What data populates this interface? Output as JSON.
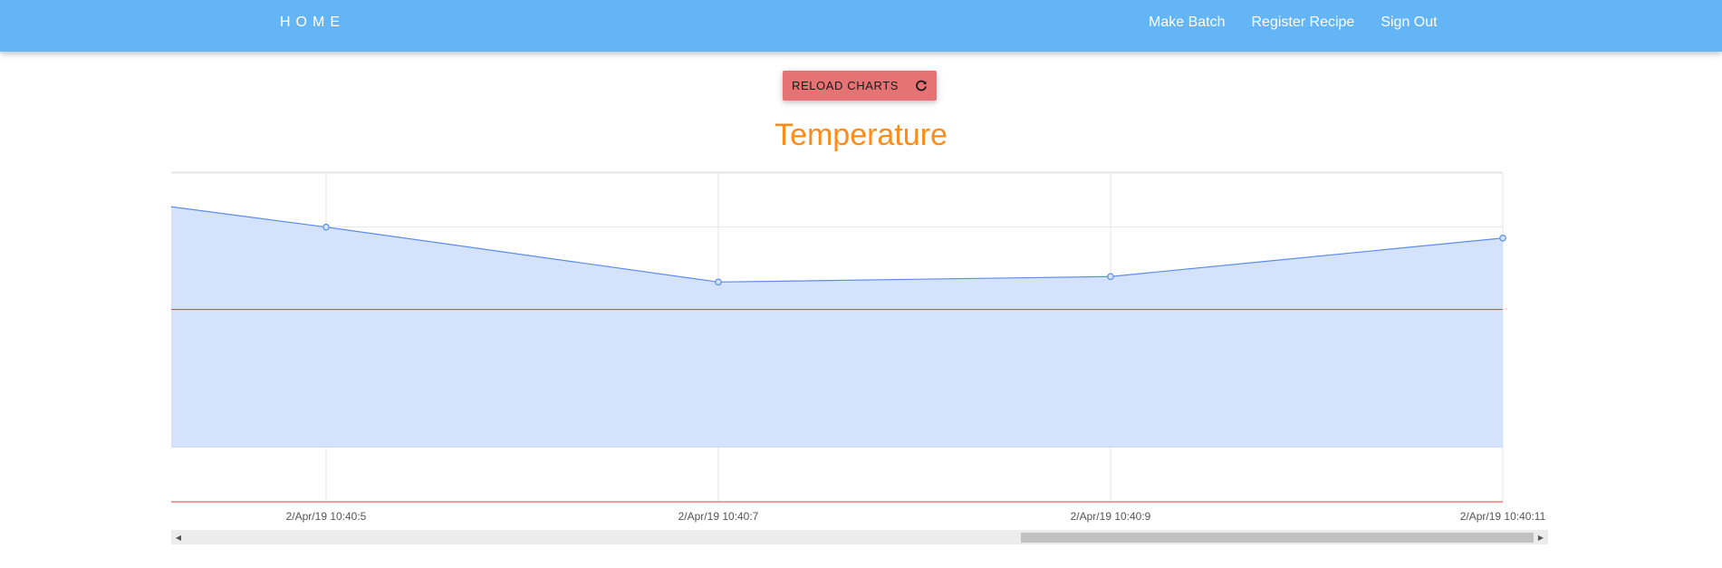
{
  "navbar": {
    "brand": "HOME",
    "links": [
      "Make Batch",
      "Register Recipe",
      "Sign Out"
    ],
    "background": "#64b5f6"
  },
  "reload_button": {
    "label": "RELOAD CHARTS",
    "icon": "refresh-icon",
    "color": "#e57373"
  },
  "chart_data": {
    "type": "area",
    "title": "Temperature",
    "title_color": "#ff8c1a",
    "x": [
      "2/Apr/19 10:40:5",
      "2/Apr/19 10:40:7",
      "2/Apr/19 10:40:9",
      "2/Apr/19 10:40:11"
    ],
    "series": [
      {
        "values": [
          25.0,
          24.0,
          24.1,
          24.8
        ],
        "color": "#5b8def",
        "fill": "#d4e3fb"
      }
    ],
    "leading_value": 25.37,
    "reference_lines": [
      {
        "value": 23.5,
        "color": "#e53935"
      },
      {
        "value": 20.0,
        "color": "#e53935"
      }
    ],
    "area_baseline": 21.0,
    "ylim": [
      20.0,
      26.0
    ],
    "y_grid_step": 1.0,
    "grid": true,
    "xlabel": "",
    "ylabel": ""
  },
  "scrollbar": {
    "left_arrow": "◀",
    "right_arrow": "▶"
  }
}
